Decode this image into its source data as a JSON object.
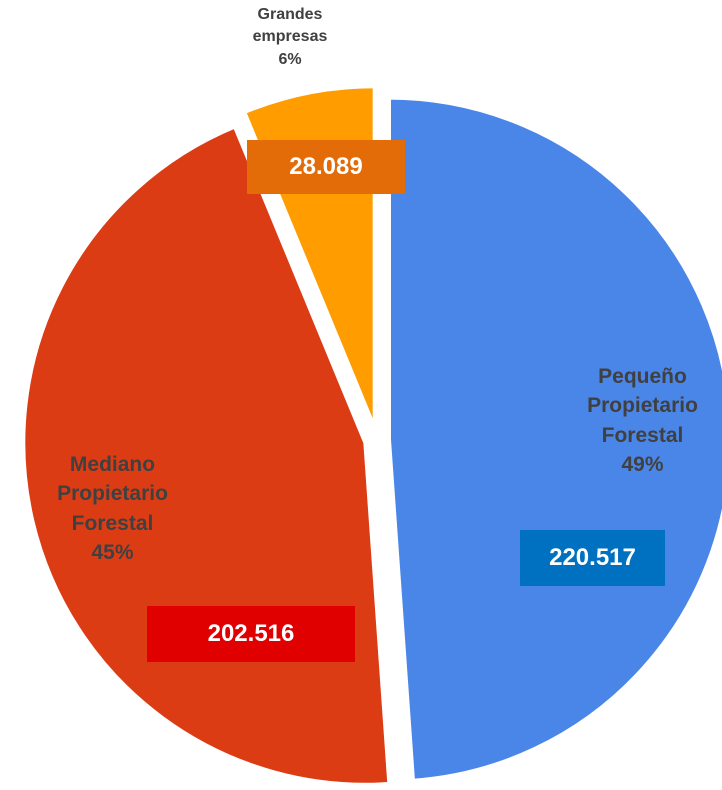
{
  "chart_data": {
    "type": "pie",
    "categories": [
      "Pequeño Propietario Forestal",
      "Mediano Propietario Forestal",
      "Grandes empresas"
    ],
    "values": [
      220517,
      202516,
      28089
    ],
    "value_labels": [
      "220.517",
      "202.516",
      "28.089"
    ],
    "percent_labels": [
      "49%",
      "45%",
      "6%"
    ],
    "colors": [
      "#4a86e8",
      "#dc3c14",
      "#ff9c00"
    ],
    "label_colors": [
      "#0070c0",
      "#e00000",
      "#e36c09"
    ]
  }
}
